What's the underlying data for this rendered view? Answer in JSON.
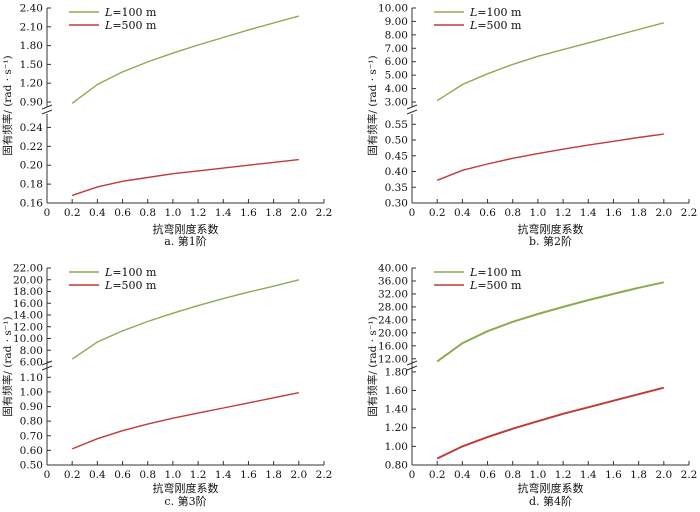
{
  "colors": {
    "green": "#8cab50",
    "red": "#bf3b3b",
    "axis": "#333333"
  },
  "chart_data": [
    {
      "type": "line",
      "caption": "a. 第1阶",
      "xlabel": "抗弯刚度系数",
      "ylabel": "固有频率/ (rad · s⁻¹)",
      "xlim": [
        0,
        2.2
      ],
      "x_ticks": [
        "0",
        "0.2",
        "0.4",
        "0.6",
        "0.8",
        "1.0",
        "1.2",
        "1.4",
        "1.6",
        "1.8",
        "2.0",
        "2.2"
      ],
      "upper_ticks": [
        "0.90",
        "1.20",
        "1.50",
        "1.80",
        "2.10",
        "2.40"
      ],
      "lower_ticks": [
        "0.16",
        "0.18",
        "0.20",
        "0.22",
        "0.24"
      ],
      "upper_ylim": [
        0.9,
        2.4
      ],
      "lower_ylim": [
        0.16,
        0.25
      ],
      "series": [
        {
          "name": "L=100 m",
          "axis": "upper",
          "x": [
            0.2,
            0.4,
            0.6,
            0.8,
            1.0,
            1.2,
            1.4,
            1.6,
            1.8,
            2.0
          ],
          "values": [
            0.88,
            1.18,
            1.38,
            1.54,
            1.68,
            1.81,
            1.93,
            2.05,
            2.16,
            2.27
          ]
        },
        {
          "name": "L=500 m",
          "axis": "lower",
          "x": [
            0.2,
            0.4,
            0.6,
            0.8,
            1.0,
            1.2,
            1.4,
            1.6,
            1.8,
            2.0
          ],
          "values": [
            0.168,
            0.177,
            0.183,
            0.187,
            0.191,
            0.194,
            0.197,
            0.2,
            0.203,
            0.206
          ]
        }
      ],
      "legend": [
        {
          "sym": "L",
          "rest": "=100 m"
        },
        {
          "sym": "L",
          "rest": "=500 m"
        }
      ]
    },
    {
      "type": "line",
      "caption": "b. 第2阶",
      "xlabel": "抗弯刚度系数",
      "ylabel": "固有频率/ (rad · s⁻¹)",
      "xlim": [
        0,
        2.2
      ],
      "x_ticks": [
        "0",
        "0.2",
        "0.4",
        "0.6",
        "0.8",
        "1.0",
        "1.2",
        "1.4",
        "1.6",
        "1.8",
        "2.0",
        "2.2"
      ],
      "upper_ticks": [
        "3.00",
        "4.00",
        "5.00",
        "6.00",
        "7.00",
        "8.00",
        "9.00",
        "10.00"
      ],
      "lower_ticks": [
        "0.30",
        "0.35",
        "0.40",
        "0.45",
        "0.50",
        "0.55"
      ],
      "upper_ylim": [
        3.0,
        10.0
      ],
      "lower_ylim": [
        0.3,
        0.57
      ],
      "series": [
        {
          "name": "L=100 m",
          "axis": "upper",
          "x": [
            0.2,
            0.4,
            0.6,
            0.8,
            1.0,
            1.2,
            1.4,
            1.6,
            1.8,
            2.0
          ],
          "values": [
            3.1,
            4.3,
            5.1,
            5.8,
            6.4,
            6.9,
            7.4,
            7.9,
            8.4,
            8.9
          ]
        },
        {
          "name": "L=500 m",
          "axis": "lower",
          "x": [
            0.2,
            0.4,
            0.6,
            0.8,
            1.0,
            1.2,
            1.4,
            1.6,
            1.8,
            2.0
          ],
          "values": [
            0.372,
            0.404,
            0.424,
            0.442,
            0.457,
            0.471,
            0.484,
            0.496,
            0.508,
            0.519
          ]
        }
      ],
      "legend": [
        {
          "sym": "L",
          "rest": "=100 m"
        },
        {
          "sym": "L",
          "rest": "=500 m"
        }
      ]
    },
    {
      "type": "line",
      "caption": "c. 第3阶",
      "xlabel": "抗弯刚度系数",
      "ylabel": "固有频率/ (rad · s⁻¹)",
      "xlim": [
        0,
        2.2
      ],
      "x_ticks": [
        "0",
        "0.2",
        "0.4",
        "0.6",
        "0.8",
        "1.0",
        "1.2",
        "1.4",
        "1.6",
        "1.8",
        "2.0",
        "2.2"
      ],
      "upper_ticks": [
        "6.00",
        "8.00",
        "10.00",
        "12.00",
        "14.00",
        "16.00",
        "18.00",
        "20.00",
        "22.00"
      ],
      "lower_ticks": [
        "0.50",
        "0.60",
        "0.70",
        "0.80",
        "0.90",
        "1.00",
        "1.10"
      ],
      "upper_ylim": [
        6.0,
        22.0
      ],
      "lower_ylim": [
        0.5,
        1.15
      ],
      "series": [
        {
          "name": "L=100 m",
          "axis": "upper",
          "x": [
            0.2,
            0.4,
            0.6,
            0.8,
            1.0,
            1.2,
            1.4,
            1.6,
            1.8,
            2.0
          ],
          "values": [
            6.5,
            9.4,
            11.3,
            12.9,
            14.3,
            15.6,
            16.8,
            17.9,
            18.9,
            20.0
          ]
        },
        {
          "name": "L=500 m",
          "axis": "lower",
          "x": [
            0.2,
            0.4,
            0.6,
            0.8,
            1.0,
            1.2,
            1.4,
            1.6,
            1.8,
            2.0
          ],
          "values": [
            0.61,
            0.68,
            0.735,
            0.78,
            0.82,
            0.855,
            0.89,
            0.925,
            0.96,
            0.995
          ]
        }
      ],
      "legend": [
        {
          "sym": "L",
          "rest": "=100 m"
        },
        {
          "sym": "L",
          "rest": "=500 m"
        }
      ]
    },
    {
      "type": "line",
      "caption": "d. 第4阶",
      "xlabel": "抗弯刚度系数",
      "ylabel": "固有频率/ (rad · s⁻¹)",
      "xlim": [
        0,
        2.2
      ],
      "x_ticks": [
        "0",
        "0.2",
        "0.4",
        "0.6",
        "0.8",
        "1.0",
        "1.2",
        "1.4",
        "1.6",
        "1.8",
        "2.0",
        "2.2"
      ],
      "upper_ticks": [
        "12.00",
        "16.00",
        "20.00",
        "24.00",
        "28.00",
        "32.00",
        "36.00",
        "40.00"
      ],
      "lower_ticks": [
        "0.80",
        "1.00",
        "1.20",
        "1.40",
        "1.60",
        "1.80"
      ],
      "upper_ylim": [
        11.0,
        40.0
      ],
      "lower_ylim": [
        0.8,
        1.82
      ],
      "series": [
        {
          "name": "L=100 m",
          "axis": "upper",
          "x": [
            0.2,
            0.4,
            0.6,
            0.8,
            1.0,
            1.2,
            1.4,
            1.6,
            1.8,
            2.0
          ],
          "values": [
            11.2,
            16.8,
            20.5,
            23.4,
            25.8,
            28.0,
            30.1,
            32.0,
            33.9,
            35.6
          ]
        },
        {
          "name": "L=500 m",
          "axis": "lower",
          "x": [
            0.2,
            0.4,
            0.6,
            0.8,
            1.0,
            1.2,
            1.4,
            1.6,
            1.8,
            2.0
          ],
          "values": [
            0.87,
            1.0,
            1.1,
            1.19,
            1.27,
            1.35,
            1.42,
            1.49,
            1.56,
            1.63
          ]
        }
      ],
      "legend": [
        {
          "sym": "L",
          "rest": "=100 m"
        },
        {
          "sym": "L",
          "rest": "=500 m"
        }
      ]
    }
  ]
}
